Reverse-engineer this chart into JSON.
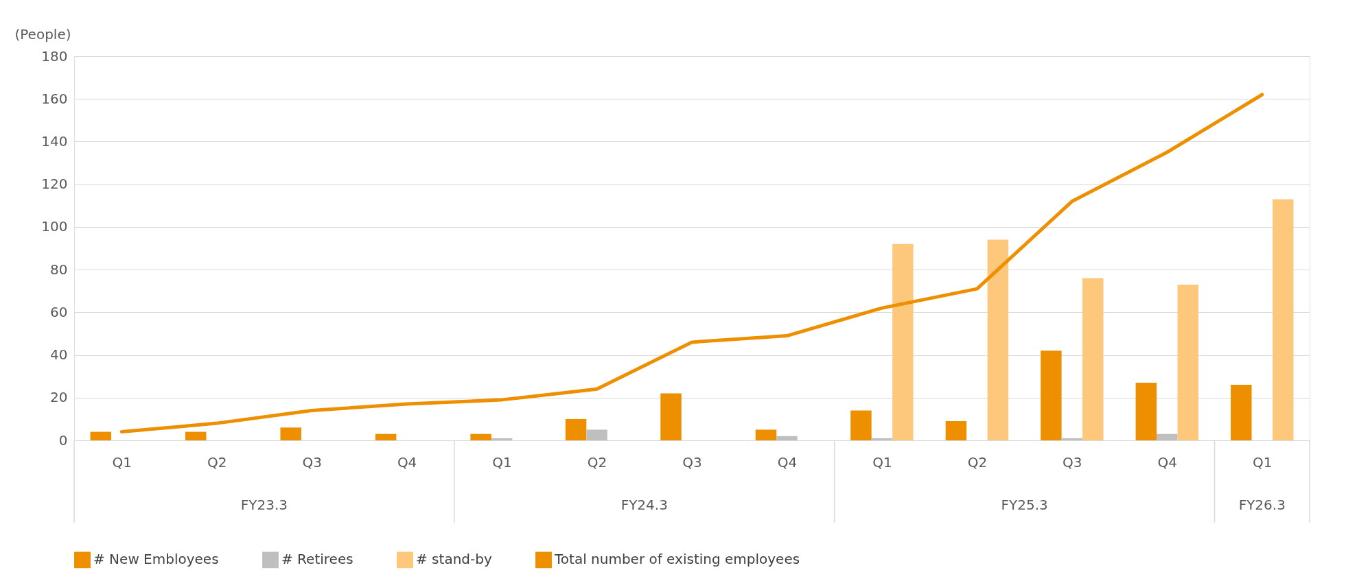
{
  "chart_data": {
    "type": "bar",
    "ylabel": "(People)",
    "categories": [
      "Q1",
      "Q2",
      "Q3",
      "Q4",
      "Q1",
      "Q2",
      "Q3",
      "Q4",
      "Q1",
      "Q2",
      "Q3",
      "Q4",
      "Q1"
    ],
    "annotations": [
      "FY23.3",
      "FY24.3",
      "FY25.3",
      "FY26.3"
    ],
    "series": [
      {
        "name": "# New Embloyees",
        "color": "#ee8f00",
        "values": [
          4,
          4,
          6,
          3,
          3,
          10,
          22,
          5,
          14,
          9,
          42,
          27,
          26
        ]
      },
      {
        "name": "# Retirees",
        "color": "#bfbfbf",
        "values": [
          null,
          null,
          null,
          null,
          1,
          5,
          null,
          2,
          1,
          null,
          1,
          3,
          null
        ]
      },
      {
        "name": "# stand-by",
        "color": "#fdc87b",
        "values": [
          null,
          null,
          null,
          null,
          null,
          null,
          null,
          null,
          92,
          94,
          76,
          73,
          113
        ]
      },
      {
        "name": "Total number of existing employees",
        "color": "#ee8f00",
        "type": "line",
        "values": [
          4,
          8,
          14,
          17,
          19,
          24,
          46,
          49,
          62,
          71,
          112,
          135,
          162
        ]
      }
    ],
    "ylim": [
      0,
      180
    ],
    "yticks": [
      0,
      20,
      40,
      60,
      80,
      100,
      120,
      140,
      160,
      180
    ],
    "grid": "y",
    "legend": "bottom"
  }
}
